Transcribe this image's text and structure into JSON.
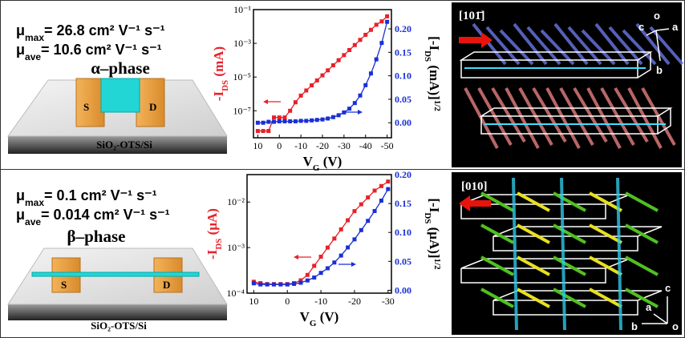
{
  "panels": [
    {
      "mu_max": [
        "μ",
        "max",
        "= 26.8 cm² V⁻¹ s⁻¹"
      ],
      "mu_ave": [
        "μ",
        "ave",
        "= 10.6 cm² V⁻¹ s⁻¹"
      ],
      "phase": "α–phase",
      "source": "S",
      "drain": "D",
      "substrate": "SiO₂-OTS/Si",
      "direction": "[101̄]",
      "axes": [
        "c",
        "o",
        "a",
        "b"
      ]
    },
    {
      "mu_max": [
        "μ",
        "max",
        "= 0.1 cm² V⁻¹ s⁻¹"
      ],
      "mu_ave": [
        "μ",
        "ave",
        "= 0.014 cm² V⁻¹ s⁻¹"
      ],
      "phase": "β–phase",
      "source": "S",
      "drain": "D",
      "substrate": "SiO₂-OTS/Si",
      "direction": "[010]",
      "axes": [
        "c",
        "a",
        "b",
        "o"
      ]
    }
  ],
  "chart_data": [
    {
      "type": "line",
      "xlabel": [
        "V",
        "G",
        " (V)"
      ],
      "ylabel": [
        "-I",
        "DS",
        " (mA)"
      ],
      "y2label": [
        "[-I",
        "DS",
        " (mA)]",
        "1/2"
      ],
      "x": [
        10,
        7.5,
        5,
        2.5,
        0,
        -2.5,
        -5,
        -7.5,
        -10,
        -12.5,
        -15,
        -17.5,
        -20,
        -22.5,
        -25,
        -27.5,
        -30,
        -32.5,
        -35,
        -37.5,
        -40,
        -42.5,
        -45,
        -47.5,
        -50
      ],
      "xlim": [
        12,
        -52
      ],
      "xticks": [
        10,
        0,
        -10,
        -20,
        -30,
        -40,
        -50
      ],
      "ylim": [
        2.5e-09,
        0.1
      ],
      "yscale": "log",
      "yticks": [
        {
          "value": 0.1,
          "label": "10⁻¹"
        },
        {
          "value": 0.001,
          "label": "10⁻³"
        },
        {
          "value": 1e-05,
          "label": "10⁻⁵"
        },
        {
          "value": 1e-07,
          "label": "10⁻⁷"
        }
      ],
      "y2lim": [
        -0.032,
        0.241
      ],
      "y2ticks": [
        {
          "value": 0,
          "label": "0.00"
        },
        {
          "value": 0.05,
          "label": "0.05"
        },
        {
          "value": 0.1,
          "label": "0.10"
        },
        {
          "value": 0.15,
          "label": "0.15"
        },
        {
          "value": 0.2,
          "label": "0.20"
        }
      ],
      "series": [
        {
          "color": "#e8202a",
          "axis": "y",
          "values": [
            6.3e-09,
            6.3e-09,
            6.3e-09,
            4e-08,
            4e-08,
            4e-08,
            1e-07,
            3.2e-07,
            7.9e-07,
            1.6e-06,
            3.2e-06,
            6.3e-06,
            1.26e-05,
            2.5e-05,
            5e-05,
            0.0001,
            0.0002,
            0.0004,
            0.00079,
            0.0016,
            0.0032,
            0.0063,
            0.0126,
            0.02,
            0.04
          ]
        },
        {
          "color": "#1a2fd6",
          "axis": "y2",
          "values": [
            0.0,
            0.0,
            0.002,
            0.002,
            0.003,
            0.003,
            0.003,
            0.003,
            0.004,
            0.004,
            0.005,
            0.006,
            0.007,
            0.009,
            0.012,
            0.016,
            0.022,
            0.03,
            0.042,
            0.058,
            0.08,
            0.105,
            0.135,
            0.17,
            0.215
          ]
        }
      ]
    },
    {
      "type": "line",
      "xlabel": [
        "V",
        "G",
        " (V)"
      ],
      "ylabel": [
        "-I",
        "DS",
        " (μA)"
      ],
      "y2label": [
        "[-I",
        "DS",
        " (μA)]",
        "1/2"
      ],
      "x": [
        10,
        8,
        6,
        4,
        2,
        0,
        -2,
        -4,
        -6,
        -8,
        -10,
        -12,
        -14,
        -16,
        -18,
        -20,
        -22,
        -24,
        -26,
        -28,
        -30
      ],
      "xlim": [
        12,
        -31
      ],
      "xticks": [
        10,
        0,
        -10,
        -20,
        -30
      ],
      "ylim": [
        0.0001,
        0.04
      ],
      "yscale": "log",
      "yticks": [
        {
          "value": 0.01,
          "label": "10⁻²"
        },
        {
          "value": 0.001,
          "label": "10⁻³"
        },
        {
          "value": 0.0001,
          "label": "10⁻⁴"
        }
      ],
      "y2lim": [
        -0.005,
        0.2
      ],
      "y2ticks": [
        {
          "value": 0,
          "label": "0.00"
        },
        {
          "value": 0.05,
          "label": "0.05"
        },
        {
          "value": 0.1,
          "label": "0.10"
        },
        {
          "value": 0.15,
          "label": "0.15"
        },
        {
          "value": 0.2,
          "label": "0.20"
        }
      ],
      "series": [
        {
          "color": "#e8202a",
          "axis": "y",
          "values": [
            0.000178,
            0.000166,
            0.000158,
            0.000158,
            0.000158,
            0.000158,
            0.000166,
            0.000191,
            0.000251,
            0.000398,
            0.000631,
            0.001,
            0.00158,
            0.00251,
            0.00398,
            0.00631,
            0.00891,
            0.0126,
            0.0178,
            0.0224,
            0.0282
          ]
        },
        {
          "color": "#1a2fd6",
          "axis": "y2",
          "values": [
            0.012,
            0.01,
            0.01,
            0.01,
            0.01,
            0.01,
            0.011,
            0.013,
            0.017,
            0.022,
            0.03,
            0.038,
            0.048,
            0.06,
            0.074,
            0.088,
            0.104,
            0.12,
            0.137,
            0.155,
            0.175
          ]
        }
      ]
    }
  ]
}
